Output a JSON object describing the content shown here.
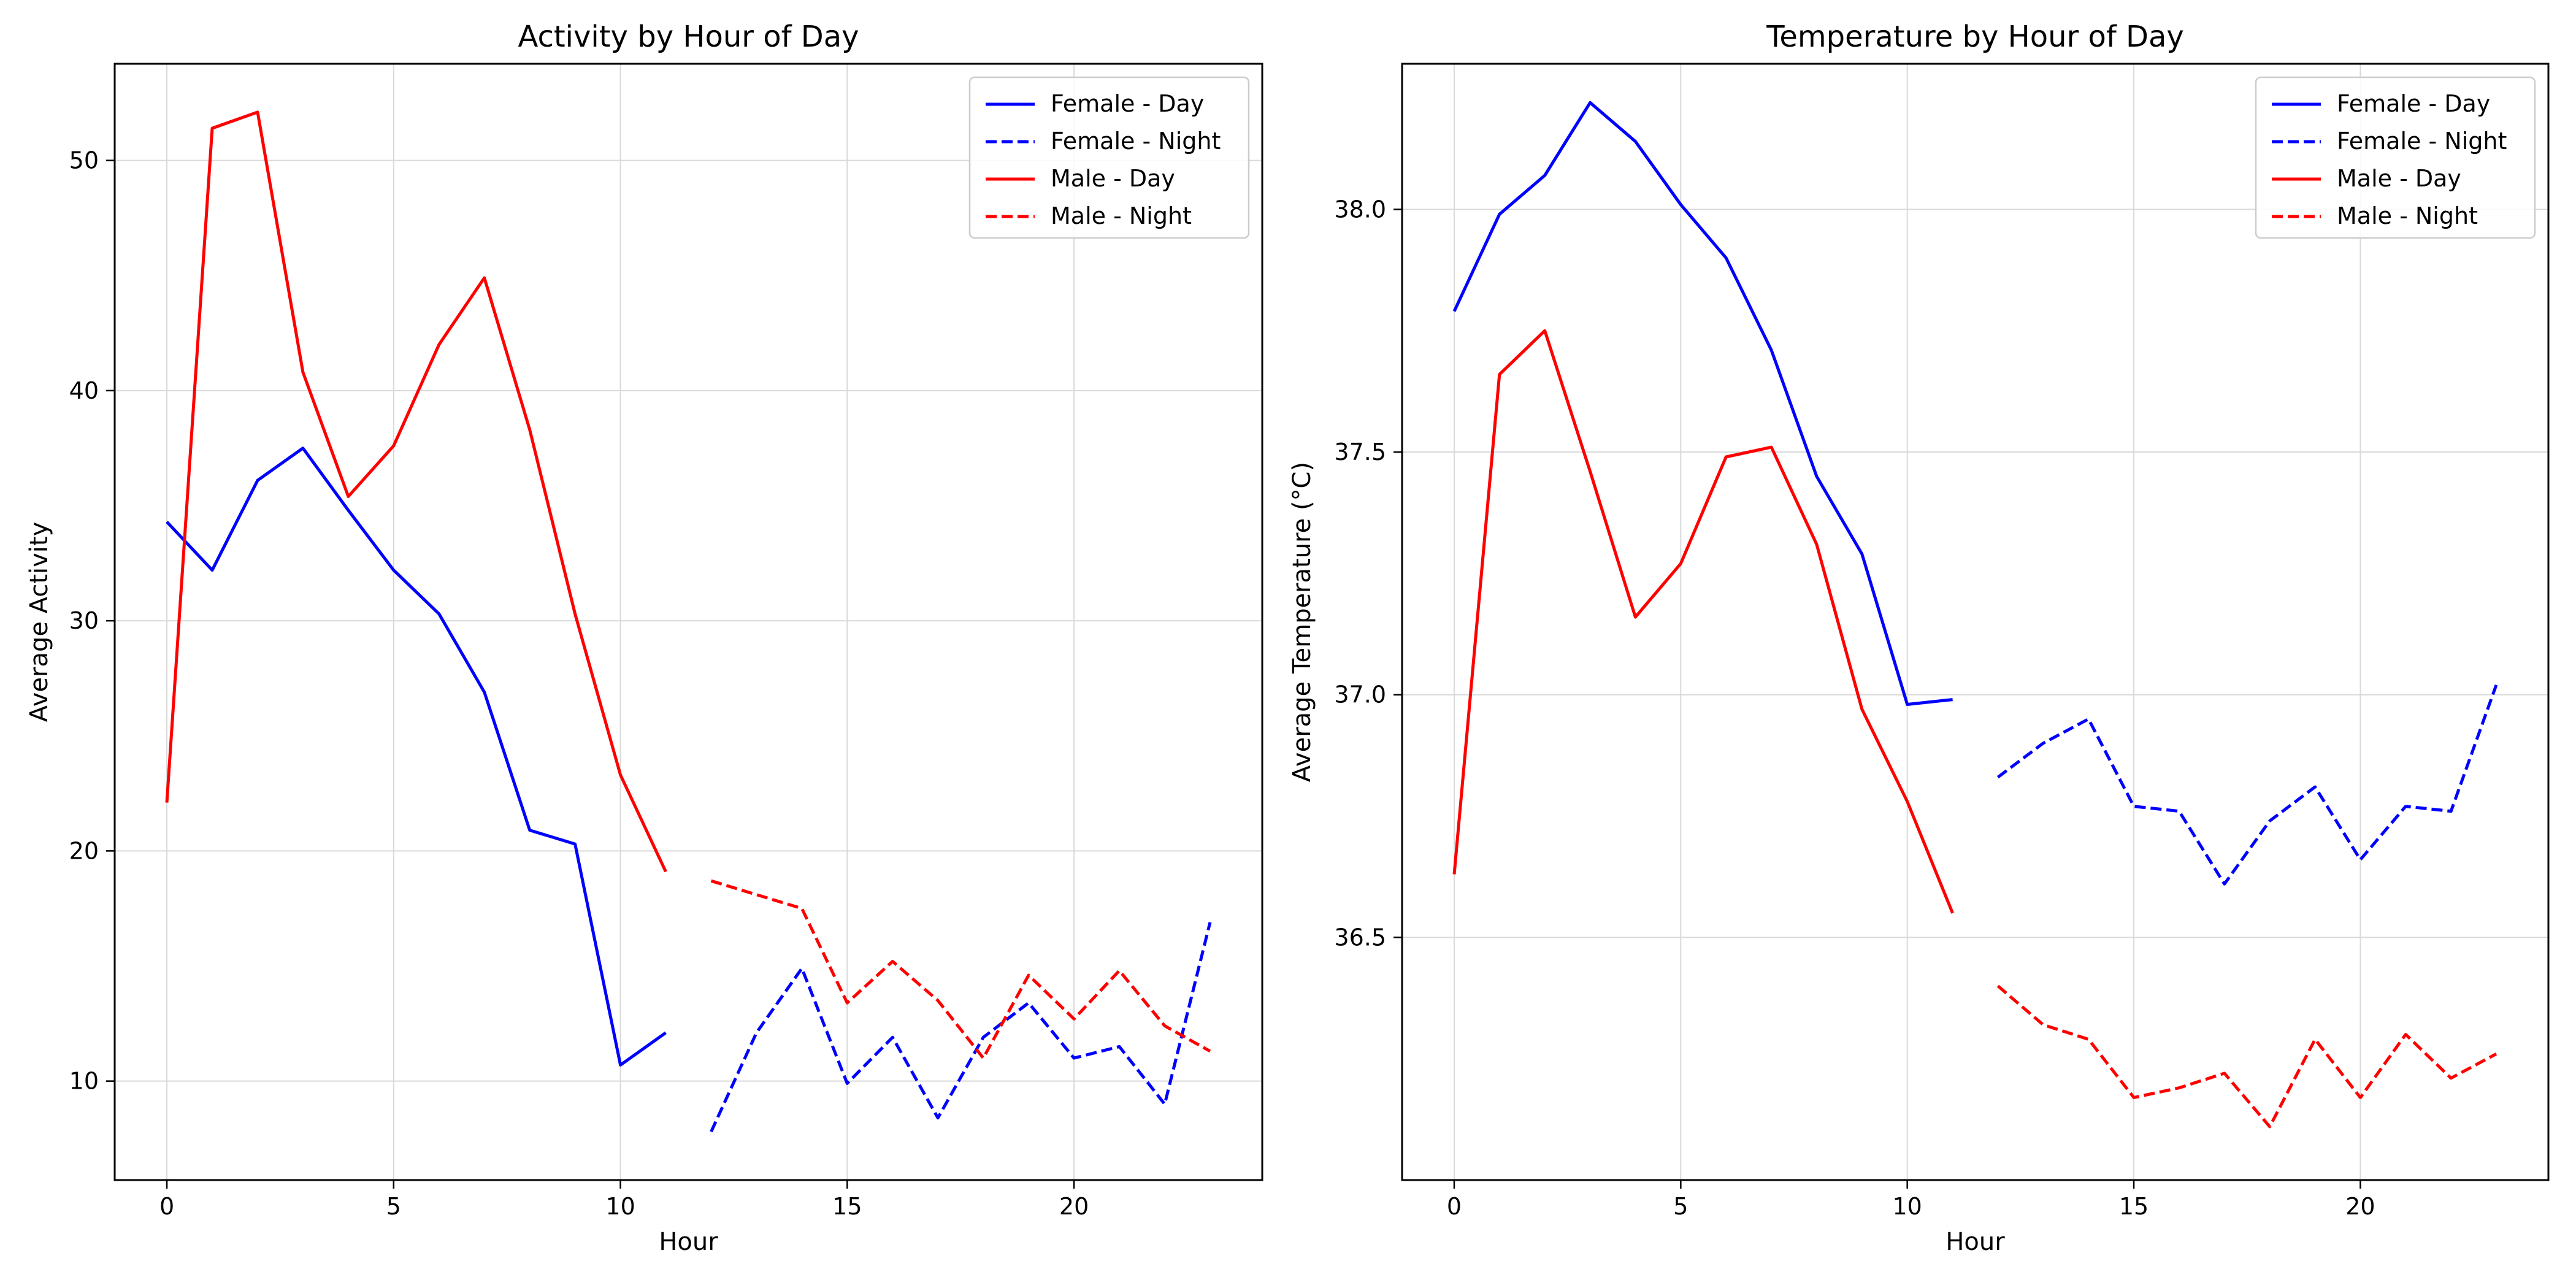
{
  "chart_data": [
    {
      "type": "line",
      "title": "Activity by Hour of Day",
      "xlabel": "Hour",
      "ylabel": "Average Activity",
      "xlim": [
        -1.15,
        24.15
      ],
      "ylim": [
        5.7,
        54.2
      ],
      "xticks": [
        0,
        5,
        10,
        15,
        20
      ],
      "yticks": [
        10,
        20,
        30,
        40,
        50
      ],
      "grid": true,
      "legend_position": "top-right",
      "series": [
        {
          "name": "Female - Day",
          "color": "#0000ff",
          "dash": "solid",
          "x": [
            0,
            1,
            2,
            3,
            4,
            5,
            6,
            7,
            8,
            9,
            10,
            11
          ],
          "y": [
            34.3,
            32.2,
            36.1,
            37.5,
            34.8,
            32.2,
            30.3,
            26.9,
            20.9,
            20.3,
            10.7,
            12.1
          ]
        },
        {
          "name": "Female - Night",
          "color": "#0000ff",
          "dash": "dashed",
          "x": [
            12,
            13,
            14,
            15,
            16,
            17,
            18,
            19,
            20,
            21,
            22,
            23
          ],
          "y": [
            7.8,
            12.1,
            14.9,
            9.9,
            11.9,
            8.4,
            11.9,
            13.4,
            11.0,
            11.5,
            9.0,
            16.9
          ]
        },
        {
          "name": "Male - Day",
          "color": "#ff0000",
          "dash": "solid",
          "x": [
            0,
            1,
            2,
            3,
            4,
            5,
            6,
            7,
            8,
            9,
            10,
            11
          ],
          "y": [
            22.1,
            51.4,
            52.1,
            40.8,
            35.4,
            37.6,
            42.0,
            44.9,
            38.3,
            30.3,
            23.3,
            19.1
          ]
        },
        {
          "name": "Male - Night",
          "color": "#ff0000",
          "dash": "dashed",
          "x": [
            12,
            13,
            14,
            15,
            16,
            17,
            18,
            19,
            20,
            21,
            22,
            23
          ],
          "y": [
            18.7,
            18.1,
            17.5,
            13.4,
            15.2,
            13.5,
            11.0,
            14.6,
            12.7,
            14.8,
            12.4,
            11.3
          ]
        }
      ]
    },
    {
      "type": "line",
      "title": "Temperature by Hour of Day",
      "xlabel": "Hour",
      "ylabel": "Average Temperature (°C)",
      "xlim": [
        -1.15,
        24.15
      ],
      "ylim": [
        36.0,
        38.3
      ],
      "xticks": [
        0,
        5,
        10,
        15,
        20
      ],
      "yticks": [
        36.5,
        37.0,
        37.5,
        38.0
      ],
      "ytick_labels": [
        "36.5",
        "37.0",
        "37.5",
        "38.0"
      ],
      "grid": true,
      "legend_position": "top-right",
      "series": [
        {
          "name": "Female - Day",
          "color": "#0000ff",
          "dash": "solid",
          "x": [
            0,
            1,
            2,
            3,
            4,
            5,
            6,
            7,
            8,
            9,
            10,
            11
          ],
          "y": [
            37.79,
            37.99,
            38.07,
            38.22,
            38.14,
            38.01,
            37.9,
            37.71,
            37.45,
            37.29,
            36.98,
            36.99
          ]
        },
        {
          "name": "Female - Night",
          "color": "#0000ff",
          "dash": "dashed",
          "x": [
            12,
            13,
            14,
            15,
            16,
            17,
            18,
            19,
            20,
            21,
            22,
            23
          ],
          "y": [
            36.83,
            36.9,
            36.95,
            36.77,
            36.76,
            36.61,
            36.74,
            36.81,
            36.66,
            36.77,
            36.76,
            37.02
          ]
        },
        {
          "name": "Male - Day",
          "color": "#ff0000",
          "dash": "solid",
          "x": [
            0,
            1,
            2,
            3,
            4,
            5,
            6,
            7,
            8,
            9,
            10,
            11
          ],
          "y": [
            36.63,
            37.66,
            37.75,
            37.46,
            37.16,
            37.27,
            37.49,
            37.51,
            37.31,
            36.97,
            36.78,
            36.55
          ]
        },
        {
          "name": "Male - Night",
          "color": "#ff0000",
          "dash": "dashed",
          "x": [
            12,
            13,
            14,
            15,
            16,
            17,
            18,
            19,
            20,
            21,
            22,
            23
          ],
          "y": [
            36.4,
            36.32,
            36.29,
            36.17,
            36.19,
            36.22,
            36.11,
            36.29,
            36.17,
            36.3,
            36.21,
            36.26
          ]
        }
      ]
    }
  ]
}
